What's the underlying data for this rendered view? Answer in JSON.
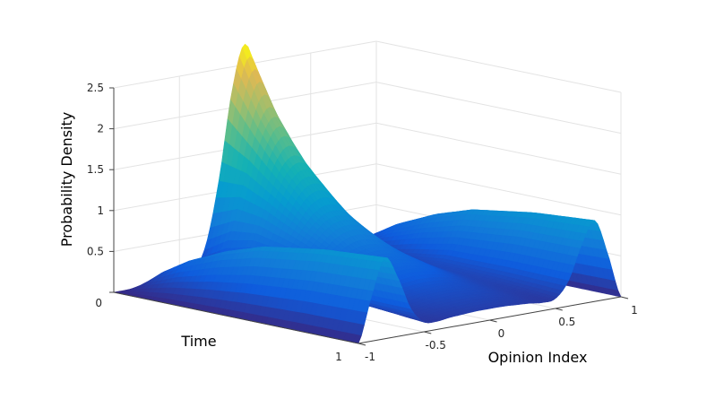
{
  "chart_data": {
    "type": "surface",
    "xlabel": "Opinion Index",
    "ylabel": "Time",
    "zlabel": "Probability Density",
    "opinion_lim": [
      -1,
      1
    ],
    "time_lim": [
      0,
      1
    ],
    "zlim": [
      0,
      2.5
    ],
    "opinion_ticks": [
      "-1",
      "-0.5",
      "0",
      "0.5",
      "1"
    ],
    "time_ticks": [
      "0",
      "1"
    ],
    "z_ticks": [
      "0",
      "0.5",
      "1",
      "1.5",
      "2",
      "2.5"
    ],
    "grid": true,
    "colormap": "parula",
    "opinion": [
      -1,
      -0.9,
      -0.8,
      -0.7,
      -0.6,
      -0.5,
      -0.4,
      -0.3,
      -0.2,
      -0.1,
      0,
      0.1,
      0.2,
      0.3,
      0.4,
      0.5,
      0.6,
      0.7,
      0.8,
      0.9,
      1
    ],
    "time": [
      0,
      0.1,
      0.2,
      0.35,
      0.5,
      0.75,
      1
    ],
    "z": [
      [
        0,
        0,
        0,
        0,
        0,
        0.01,
        0.08,
        0.37,
        1.13,
        2.2,
        2.75,
        2.2,
        1.13,
        0.37,
        0.08,
        0.01,
        0,
        0,
        0,
        0,
        0
      ],
      [
        0,
        0.14,
        0.26,
        0.18,
        0.08,
        0.06,
        0.2,
        0.55,
        1.14,
        1.76,
        2.04,
        1.76,
        1.14,
        0.55,
        0.2,
        0.06,
        0.08,
        0.18,
        0.26,
        0.14,
        0
      ],
      [
        0,
        0.25,
        0.45,
        0.33,
        0.15,
        0.13,
        0.29,
        0.6,
        1.0,
        1.37,
        1.51,
        1.37,
        1.0,
        0.6,
        0.29,
        0.13,
        0.15,
        0.33,
        0.45,
        0.25,
        0
      ],
      [
        0,
        0.36,
        0.66,
        0.49,
        0.24,
        0.2,
        0.35,
        0.52,
        0.73,
        0.9,
        0.96,
        0.9,
        0.73,
        0.52,
        0.35,
        0.2,
        0.24,
        0.49,
        0.66,
        0.36,
        0
      ],
      [
        0,
        0.44,
        0.81,
        0.61,
        0.31,
        0.22,
        0.29,
        0.4,
        0.5,
        0.58,
        0.61,
        0.58,
        0.5,
        0.4,
        0.29,
        0.22,
        0.31,
        0.61,
        0.81,
        0.44,
        0
      ],
      [
        0,
        0.52,
        0.93,
        0.7,
        0.32,
        0.18,
        0.18,
        0.22,
        0.26,
        0.28,
        0.29,
        0.28,
        0.26,
        0.22,
        0.18,
        0.18,
        0.32,
        0.7,
        0.93,
        0.52,
        0
      ],
      [
        0,
        0.55,
        0.99,
        0.72,
        0.31,
        0.12,
        0.1,
        0.12,
        0.13,
        0.14,
        0.14,
        0.14,
        0.13,
        0.12,
        0.1,
        0.12,
        0.31,
        0.72,
        0.99,
        0.55,
        0
      ]
    ]
  }
}
